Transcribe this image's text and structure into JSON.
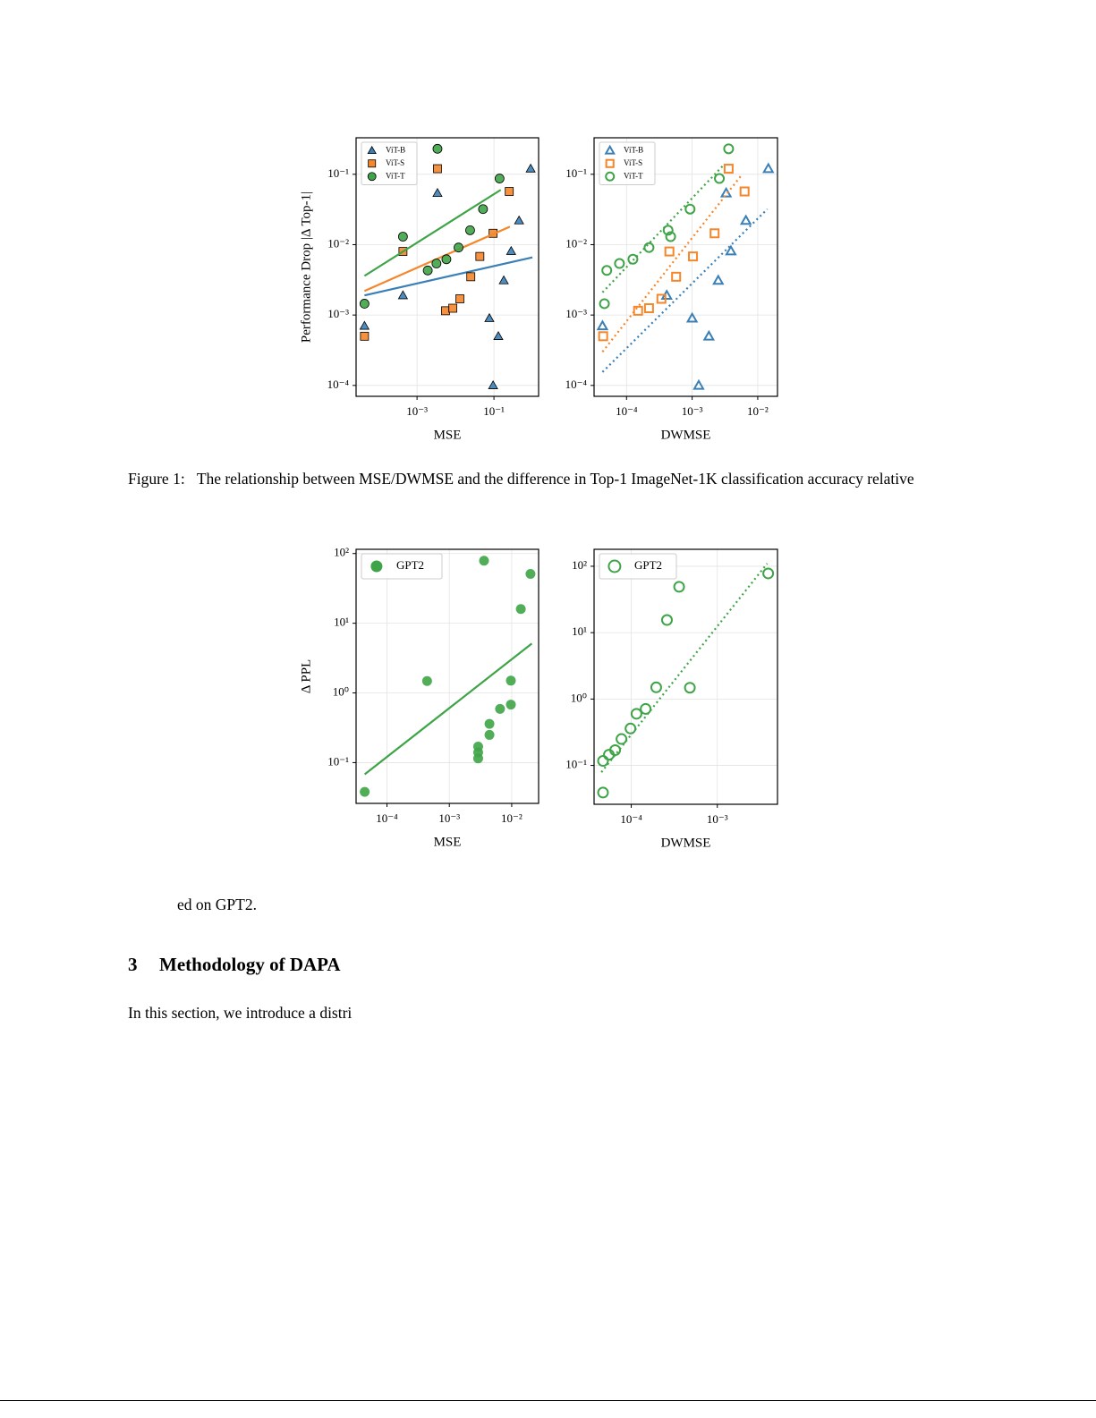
{
  "chart_data": [
    {
      "type": "scatter",
      "xlabel": "MSE",
      "ylabel": "Performance Drop |Δ Top-1|",
      "xscale": "log",
      "yscale": "log",
      "xlim": [
        2.6e-05,
        1.45
      ],
      "ylim": [
        7e-05,
        0.33
      ],
      "xticks": [
        {
          "value": 0.001,
          "label": "10⁻³"
        },
        {
          "value": 0.1,
          "label": "10⁻¹"
        }
      ],
      "yticks": [
        {
          "value": 0.0001,
          "label": "10⁻⁴"
        },
        {
          "value": 0.001,
          "label": "10⁻³"
        },
        {
          "value": 0.01,
          "label": "10⁻²"
        },
        {
          "value": 0.1,
          "label": "10⁻¹"
        }
      ],
      "grid": true,
      "legend": "upper left",
      "marker_fill": "filled",
      "marker_edge": "#000000",
      "fit_style": "solid",
      "series": [
        {
          "name": "ViT-B",
          "color": "#3a7fb5",
          "marker": "triangle",
          "x": [
            4.3e-05,
            0.00043,
            0.0034,
            0.076,
            0.13,
            0.095,
            0.18,
            0.28,
            0.45,
            0.9
          ],
          "y": [
            0.0007,
            0.0019,
            0.054,
            0.0009,
            0.0005,
            0.0001,
            0.0031,
            0.0081,
            0.022,
            0.12
          ],
          "fit_x": [
            4.3e-05,
            1.0
          ],
          "fit_y": [
            0.0019,
            0.0066
          ]
        },
        {
          "name": "ViT-S",
          "color": "#f5862a",
          "marker": "square",
          "x": [
            4.3e-05,
            0.00043,
            0.0034,
            0.0055,
            0.0085,
            0.013,
            0.025,
            0.043,
            0.095,
            0.25
          ],
          "y": [
            0.0005,
            0.008,
            0.12,
            0.00115,
            0.00125,
            0.0017,
            0.0035,
            0.0068,
            0.0145,
            0.057
          ],
          "fit_x": [
            4.3e-05,
            0.26
          ],
          "fit_y": [
            0.0022,
            0.018
          ]
        },
        {
          "name": "ViT-T",
          "color": "#3fa447",
          "marker": "circle",
          "x": [
            4.3e-05,
            0.00043,
            0.0034,
            0.0019,
            0.0032,
            0.0058,
            0.012,
            0.024,
            0.052,
            0.14
          ],
          "y": [
            0.00145,
            0.013,
            0.23,
            0.0043,
            0.0054,
            0.0062,
            0.0091,
            0.016,
            0.032,
            0.087
          ],
          "fit_x": [
            4.3e-05,
            0.15
          ],
          "fit_y": [
            0.0036,
            0.06
          ]
        }
      ]
    },
    {
      "type": "scatter",
      "xlabel": "DWMSE",
      "xscale": "log",
      "yscale": "log",
      "xlim": [
        3.2e-05,
        0.02
      ],
      "ylim": [
        7e-05,
        0.33
      ],
      "xticks": [
        {
          "value": 0.0001,
          "label": "10⁻⁴"
        },
        {
          "value": 0.001,
          "label": "10⁻³"
        },
        {
          "value": 0.01,
          "label": "10⁻²"
        }
      ],
      "yticks": [
        {
          "value": 0.0001,
          "label": "10⁻⁴"
        },
        {
          "value": 0.001,
          "label": "10⁻³"
        },
        {
          "value": 0.01,
          "label": "10⁻²"
        },
        {
          "value": 0.1,
          "label": "10⁻¹"
        }
      ],
      "grid": true,
      "legend": "upper left",
      "marker_fill": "hollow",
      "fit_style": "dotted",
      "series": [
        {
          "name": "ViT-B",
          "color": "#3a7fb5",
          "marker": "triangle",
          "x": [
            4.3e-05,
            0.00041,
            0.0033,
            0.001,
            0.0018,
            0.00126,
            0.0025,
            0.0039,
            0.0066,
            0.0145
          ],
          "y": [
            0.0007,
            0.0019,
            0.054,
            0.0009,
            0.0005,
            0.0001,
            0.0031,
            0.0081,
            0.022,
            0.12
          ],
          "fit_x": [
            4.3e-05,
            0.014
          ],
          "fit_y": [
            0.000155,
            0.032
          ]
        },
        {
          "name": "ViT-S",
          "color": "#f5862a",
          "marker": "square",
          "x": [
            4.4e-05,
            0.00045,
            0.0036,
            0.00015,
            0.00022,
            0.00034,
            0.00057,
            0.00103,
            0.0022,
            0.0063
          ],
          "y": [
            0.0005,
            0.008,
            0.12,
            0.00115,
            0.00125,
            0.0017,
            0.0035,
            0.0068,
            0.0145,
            0.057
          ],
          "fit_x": [
            4.3e-05,
            0.0058
          ],
          "fit_y": [
            0.0003,
            0.1
          ]
        },
        {
          "name": "ViT-T",
          "color": "#3fa447",
          "marker": "circle",
          "x": [
            4.6e-05,
            0.00047,
            0.0036,
            5e-05,
            7.8e-05,
            0.000125,
            0.00022,
            0.00043,
            0.00093,
            0.0026
          ],
          "y": [
            0.00145,
            0.013,
            0.23,
            0.0043,
            0.0054,
            0.0062,
            0.0091,
            0.016,
            0.032,
            0.087
          ],
          "fit_x": [
            4.3e-05,
            0.0029
          ],
          "fit_y": [
            0.0021,
            0.13
          ]
        }
      ]
    },
    {
      "type": "scatter",
      "xlabel": "MSE",
      "ylabel": "Δ PPL",
      "xscale": "log",
      "yscale": "log",
      "xlim": [
        3.2e-05,
        0.027
      ],
      "ylim": [
        0.026,
        115
      ],
      "xticks": [
        {
          "value": 0.0001,
          "label": "10⁻⁴"
        },
        {
          "value": 0.001,
          "label": "10⁻³"
        },
        {
          "value": 0.01,
          "label": "10⁻²"
        }
      ],
      "yticks": [
        {
          "value": 0.1,
          "label": "10⁻¹"
        },
        {
          "value": 1,
          "label": "10⁰"
        },
        {
          "value": 10,
          "label": "10¹"
        },
        {
          "value": 100,
          "label": "10²"
        }
      ],
      "grid": true,
      "legend": "upper left",
      "marker_fill": "filled",
      "fit_style": "solid",
      "series": [
        {
          "name": "GPT2",
          "color": "#3fa447",
          "marker": "circle",
          "x": [
            4.4e-05,
            0.00044,
            0.0036,
            0.02,
            0.014,
            0.0097,
            0.0097,
            0.0065,
            0.0044,
            0.0044,
            0.0029,
            0.0029,
            0.0029
          ],
          "y": [
            0.038,
            1.48,
            79,
            51,
            16,
            1.5,
            0.68,
            0.59,
            0.36,
            0.25,
            0.17,
            0.14,
            0.115
          ],
          "fit_x": [
            4.4e-05,
            0.021
          ],
          "fit_y": [
            0.068,
            5.1
          ]
        }
      ]
    },
    {
      "type": "scatter",
      "xlabel": "DWMSE",
      "xscale": "log",
      "yscale": "log",
      "xlim": [
        3.7e-05,
        0.005
      ],
      "ylim": [
        0.026,
        180
      ],
      "xticks": [
        {
          "value": 0.0001,
          "label": "10⁻⁴"
        },
        {
          "value": 0.001,
          "label": "10⁻³"
        }
      ],
      "yticks": [
        {
          "value": 0.1,
          "label": "10⁻¹"
        },
        {
          "value": 1,
          "label": "10⁰"
        },
        {
          "value": 10,
          "label": "10¹"
        },
        {
          "value": 100,
          "label": "10²"
        }
      ],
      "grid": true,
      "legend": "upper left",
      "marker_fill": "hollow",
      "fit_style": "dotted",
      "series": [
        {
          "name": "GPT2",
          "color": "#3fa447",
          "marker": "circle",
          "x": [
            4.7e-05,
            0.00048,
            0.0039,
            0.00036,
            0.00026,
            0.000195,
            0.000147,
            0.000115,
            9.8e-05,
            7.7e-05,
            6.5e-05,
            5.5e-05,
            4.7e-05
          ],
          "y": [
            0.039,
            1.48,
            78,
            49,
            15.5,
            1.5,
            0.71,
            0.6,
            0.36,
            0.25,
            0.17,
            0.145,
            0.117
          ],
          "fit_x": [
            4.5e-05,
            0.0038
          ],
          "fit_y": [
            0.079,
            110
          ]
        }
      ]
    }
  ],
  "caption": {
    "label": "Figure 1:",
    "text": "The relationship between MSE/DWMSE and the difference in Top-1 ImageNet-1K classification accuracy relative"
  },
  "caption_tail": "ed on GPT2.",
  "section": {
    "number": "3",
    "title": "Methodology of DAPA"
  },
  "paragraph": "In this section, we introduce a distri"
}
